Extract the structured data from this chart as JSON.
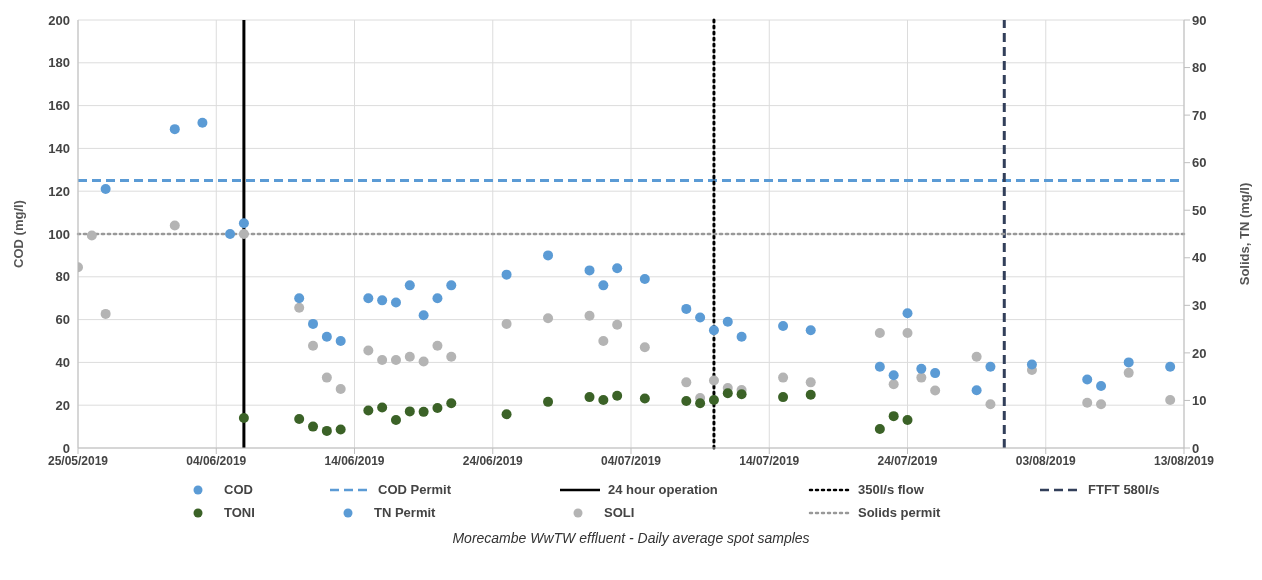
{
  "chart_data": {
    "type": "scatter",
    "xlabel": null,
    "ylabel": "COD (mg/l)",
    "y2label": "Solids, TN (mg/l)",
    "annotations": [
      "Morecambe WwTW effluent - Daily average spot samples"
    ],
    "xlim": [
      "2019-05-25",
      "2019-08-13"
    ],
    "xticks": [
      {
        "value": "2019-05-25",
        "label": "25/05/2019"
      },
      {
        "value": "2019-06-04",
        "label": "04/06/2019"
      },
      {
        "value": "2019-06-14",
        "label": "14/06/2019"
      },
      {
        "value": "2019-06-24",
        "label": "24/06/2019"
      },
      {
        "value": "2019-07-04",
        "label": "04/07/2019"
      },
      {
        "value": "2019-07-14",
        "label": "14/07/2019"
      },
      {
        "value": "2019-07-24",
        "label": "24/07/2019"
      },
      {
        "value": "2019-08-03",
        "label": "03/08/2019"
      },
      {
        "value": "2019-08-13",
        "label": "13/08/2019"
      }
    ],
    "ylim": [
      0,
      200
    ],
    "yticks": [
      0,
      20,
      40,
      60,
      80,
      100,
      120,
      140,
      160,
      180,
      200
    ],
    "y2lim": [
      0,
      90
    ],
    "y2ticks": [
      0,
      10,
      20,
      30,
      40,
      50,
      60,
      70,
      80,
      90
    ],
    "grid": true,
    "legend": "bottom",
    "marker": "circle",
    "series": [
      {
        "name": "COD",
        "color": "#5b9bd5",
        "x": [
          "2019-05-27",
          "2019-06-01",
          "2019-06-03",
          "2019-06-05",
          "2019-06-06",
          "2019-06-10",
          "2019-06-11",
          "2019-06-12",
          "2019-06-13",
          "2019-06-15",
          "2019-06-16",
          "2019-06-17",
          "2019-06-18",
          "2019-06-19",
          "2019-06-20",
          "2019-06-21",
          "2019-06-25",
          "2019-06-28",
          "2019-07-01",
          "2019-07-02",
          "2019-07-03",
          "2019-07-05",
          "2019-07-08",
          "2019-07-09",
          "2019-07-10",
          "2019-07-11",
          "2019-07-12",
          "2019-07-15",
          "2019-07-17",
          "2019-07-22",
          "2019-07-23",
          "2019-07-24",
          "2019-07-25",
          "2019-07-26",
          "2019-07-29",
          "2019-07-30",
          "2019-08-02",
          "2019-08-06",
          "2019-08-07",
          "2019-08-09",
          "2019-08-12"
        ],
        "values": [
          121,
          149,
          152,
          100,
          105,
          70,
          58,
          52,
          50,
          70,
          69,
          68,
          76,
          62,
          70,
          76,
          81,
          90,
          83,
          76,
          84,
          79,
          65,
          61,
          55,
          59,
          52,
          57,
          55,
          38,
          34,
          63,
          37,
          35,
          27,
          38,
          39,
          32,
          29,
          40,
          38
        ]
      },
      {
        "name": "TONI",
        "color": "#3b6227",
        "axis": "y2",
        "x": [
          "2019-06-06",
          "2019-06-10",
          "2019-06-11",
          "2019-06-12",
          "2019-06-13",
          "2019-06-15",
          "2019-06-16",
          "2019-06-17",
          "2019-06-18",
          "2019-06-19",
          "2019-06-20",
          "2019-06-21",
          "2019-06-25",
          "2019-06-28",
          "2019-07-01",
          "2019-07-02",
          "2019-07-03",
          "2019-07-05",
          "2019-07-08",
          "2019-07-09",
          "2019-07-10",
          "2019-07-11",
          "2019-07-12",
          "2019-07-15",
          "2019-07-17",
          "2019-07-22",
          "2019-07-23",
          "2019-07-24"
        ],
        "values": [
          6.3,
          6.1,
          4.5,
          3.6,
          3.9,
          7.9,
          8.5,
          5.9,
          7.7,
          7.6,
          8.4,
          9.4,
          7.1,
          9.7,
          10.7,
          10.1,
          11,
          10.4,
          9.9,
          9.4,
          10.1,
          11.5,
          11.3,
          10.7,
          11.2,
          4,
          6.7,
          5.9
        ]
      },
      {
        "name": "TN Permit",
        "color": "#5b9bd5",
        "axis": "y2"
      },
      {
        "name": "SOLI",
        "color": "#b4b4b4",
        "axis": "y2",
        "x": [
          "2019-05-25",
          "2019-05-26",
          "2019-05-27",
          "2019-06-01",
          "2019-06-06",
          "2019-06-10",
          "2019-06-11",
          "2019-06-12",
          "2019-06-13",
          "2019-06-15",
          "2019-06-16",
          "2019-06-17",
          "2019-06-18",
          "2019-06-19",
          "2019-06-20",
          "2019-06-21",
          "2019-06-25",
          "2019-06-28",
          "2019-07-01",
          "2019-07-02",
          "2019-07-03",
          "2019-07-05",
          "2019-07-08",
          "2019-07-09",
          "2019-07-10",
          "2019-07-11",
          "2019-07-12",
          "2019-07-15",
          "2019-07-17",
          "2019-07-22",
          "2019-07-23",
          "2019-07-24",
          "2019-07-25",
          "2019-07-26",
          "2019-07-29",
          "2019-07-30",
          "2019-08-02",
          "2019-08-06",
          "2019-08-07",
          "2019-08-09",
          "2019-08-12"
        ],
        "values": [
          38,
          44.7,
          28.2,
          46.8,
          45,
          29.5,
          21.5,
          14.8,
          12.4,
          20.5,
          18.5,
          18.5,
          19.2,
          18.2,
          21.5,
          19.2,
          26.1,
          27.3,
          27.8,
          22.5,
          25.9,
          21.2,
          13.8,
          10.5,
          14.2,
          12.6,
          12.2,
          14.8,
          13.8,
          24.2,
          13.4,
          24.2,
          14.8,
          12.1,
          19.2,
          9.2,
          16.4,
          9.5,
          9.2,
          15.8,
          10.1
        ]
      }
    ],
    "ref_lines": [
      {
        "axis": "y",
        "value": 125,
        "label": "COD Permit",
        "color": "#5b9bd5",
        "line_style": "dashed"
      },
      {
        "axis": "x",
        "value": "2019-06-06",
        "label": "24 hour operation",
        "color": "#000000",
        "line_style": "solid"
      },
      {
        "axis": "x",
        "value": "2019-07-10",
        "label": "350l/s flow",
        "color": "#000000",
        "line_style": "dotted"
      },
      {
        "axis": "x",
        "value": "2019-07-31",
        "label": "FTFT 580l/s",
        "color": "#323f5a",
        "line_style": "dashed"
      },
      {
        "axis": "y2",
        "value": 45,
        "label": "Solids permit",
        "color": "#999999",
        "line_style": "dotted"
      }
    ]
  }
}
